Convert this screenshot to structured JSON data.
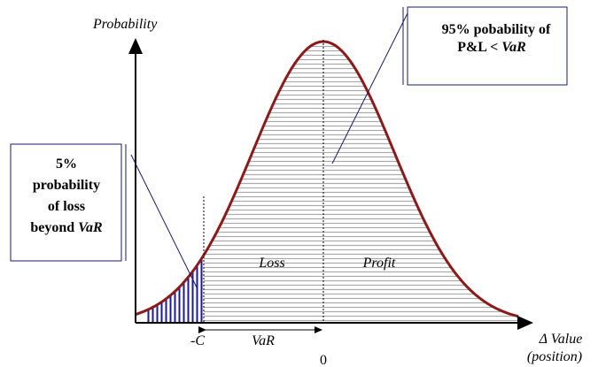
{
  "y_axis_label": "Probability",
  "x_axis_label": {
    "line1": "Δ Value",
    "line2": "(position)"
  },
  "callout_right": {
    "line1": "95% pobability of",
    "line2": "P&L <",
    "italic": "VaR"
  },
  "callout_left": {
    "lines": [
      "5%",
      "probability",
      "of loss"
    ],
    "last": "beyond",
    "italic": "VaR"
  },
  "regions": {
    "loss": "Loss",
    "profit": "Profit"
  },
  "markers": {
    "minus_c": "-C",
    "var": "VaR",
    "zero": "0"
  }
}
